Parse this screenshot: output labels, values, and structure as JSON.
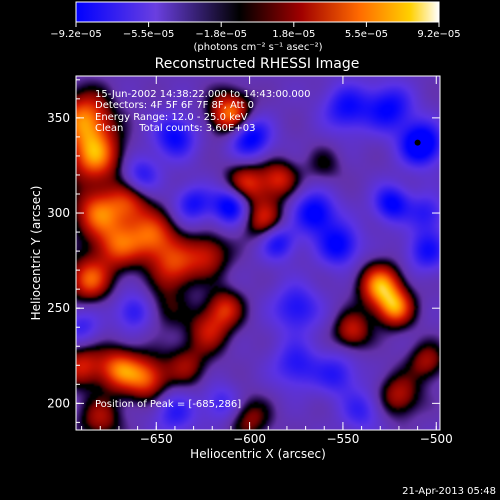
{
  "chart_data": {
    "type": "heatmap",
    "title": "Reconstructed RHESSI Image",
    "xlabel": "Heliocentric X (arcsec)",
    "ylabel": "Heliocentric Y (arcsec)",
    "xlim": [
      -693,
      -498
    ],
    "ylim": [
      186,
      372
    ],
    "x_ticks": [
      -650,
      -600,
      -550,
      -500
    ],
    "x_tick_labels": [
      "−650",
      "−600",
      "−550",
      "−500"
    ],
    "y_ticks": [
      200,
      250,
      300,
      350
    ],
    "y_tick_labels": [
      "200",
      "250",
      "300",
      "350"
    ],
    "colorbar": {
      "min": -9.2e-05,
      "max": 9.2e-05,
      "tick_labels": [
        "−9.2e−05",
        "−5.5e−05",
        "−1.8e−05",
        "1.8e−05",
        "5.5e−05",
        "9.2e−05"
      ],
      "unit_label": "(photons cm⁻² s⁻¹ asec⁻²)",
      "colors": [
        "#0000ff",
        "#6a3fe0",
        "#000000",
        "#a00000",
        "#ff6a00",
        "#ffd000",
        "#ffffff"
      ]
    },
    "info_lines": [
      "15-Jun-2002 14:38:22.000 to 14:43:00.000",
      "Detectors: 4F 5F 6F 7F 8F, Att 0",
      "Energy Range: 12.0 - 25.0 keV",
      "Clean     Total counts: 3.60E+03"
    ],
    "peak_label": "Position of Peak = [-685,286]",
    "marker": {
      "x": -510,
      "y": 337
    },
    "blobs": [
      {
        "x": -688,
        "y": 350,
        "v": 0.85,
        "s": 10
      },
      {
        "x": -683,
        "y": 330,
        "v": 0.9,
        "s": 10
      },
      {
        "x": -682,
        "y": 300,
        "v": 0.75,
        "s": 9
      },
      {
        "x": -686,
        "y": 265,
        "v": 0.8,
        "s": 8
      },
      {
        "x": -690,
        "y": 220,
        "v": 0.6,
        "s": 8
      },
      {
        "x": -671,
        "y": 283,
        "v": 0.7,
        "s": 9
      },
      {
        "x": -652,
        "y": 288,
        "v": 0.75,
        "s": 9
      },
      {
        "x": -665,
        "y": 305,
        "v": 0.6,
        "s": 8
      },
      {
        "x": -640,
        "y": 272,
        "v": 0.65,
        "s": 9
      },
      {
        "x": -622,
        "y": 278,
        "v": 0.55,
        "s": 8
      },
      {
        "x": -610,
        "y": 352,
        "v": 0.95,
        "s": 8
      },
      {
        "x": -602,
        "y": 315,
        "v": 0.7,
        "s": 8
      },
      {
        "x": -592,
        "y": 296,
        "v": 0.65,
        "s": 8
      },
      {
        "x": -584,
        "y": 318,
        "v": 0.6,
        "s": 7
      },
      {
        "x": -670,
        "y": 218,
        "v": 0.8,
        "s": 8
      },
      {
        "x": -655,
        "y": 213,
        "v": 0.75,
        "s": 8
      },
      {
        "x": -634,
        "y": 220,
        "v": 0.45,
        "s": 8
      },
      {
        "x": -622,
        "y": 238,
        "v": 0.55,
        "s": 8
      },
      {
        "x": -613,
        "y": 250,
        "v": 0.6,
        "s": 7
      },
      {
        "x": -530,
        "y": 262,
        "v": 0.95,
        "s": 8
      },
      {
        "x": -522,
        "y": 250,
        "v": 0.85,
        "s": 7
      },
      {
        "x": -545,
        "y": 238,
        "v": 0.6,
        "s": 7
      },
      {
        "x": -520,
        "y": 204,
        "v": 0.55,
        "s": 8
      },
      {
        "x": -505,
        "y": 222,
        "v": 0.5,
        "s": 7
      },
      {
        "x": -680,
        "y": 192,
        "v": 0.5,
        "s": 8
      },
      {
        "x": -600,
        "y": 192,
        "v": 0.45,
        "s": 8
      },
      {
        "x": -560,
        "y": 325,
        "v": 0.25,
        "s": 7
      },
      {
        "x": -645,
        "y": 250,
        "v": 0.3,
        "s": 8
      },
      {
        "x": -600,
        "y": 340,
        "v": -0.85,
        "s": 8
      },
      {
        "x": -610,
        "y": 304,
        "v": -0.9,
        "s": 7
      },
      {
        "x": -585,
        "y": 285,
        "v": -0.7,
        "s": 7
      },
      {
        "x": -565,
        "y": 300,
        "v": -0.8,
        "s": 8
      },
      {
        "x": -552,
        "y": 283,
        "v": -0.75,
        "s": 8
      },
      {
        "x": -524,
        "y": 305,
        "v": -0.75,
        "s": 7
      },
      {
        "x": -508,
        "y": 336,
        "v": -1.0,
        "s": 8
      },
      {
        "x": -525,
        "y": 355,
        "v": -0.7,
        "s": 9
      },
      {
        "x": -548,
        "y": 355,
        "v": -0.65,
        "s": 9
      },
      {
        "x": -640,
        "y": 340,
        "v": -0.7,
        "s": 8
      },
      {
        "x": -658,
        "y": 320,
        "v": -0.55,
        "s": 7
      },
      {
        "x": -630,
        "y": 305,
        "v": -0.6,
        "s": 7
      },
      {
        "x": -662,
        "y": 248,
        "v": -0.55,
        "s": 7
      },
      {
        "x": -575,
        "y": 250,
        "v": -0.6,
        "s": 9
      },
      {
        "x": -575,
        "y": 220,
        "v": -0.55,
        "s": 9
      },
      {
        "x": -553,
        "y": 215,
        "v": -0.5,
        "s": 8
      },
      {
        "x": -505,
        "y": 280,
        "v": -0.6,
        "s": 8
      },
      {
        "x": -505,
        "y": 300,
        "v": -0.5,
        "s": 7
      },
      {
        "x": -640,
        "y": 195,
        "v": -0.5,
        "s": 8
      },
      {
        "x": -615,
        "y": 200,
        "v": -0.45,
        "s": 7
      },
      {
        "x": -690,
        "y": 240,
        "v": -0.45,
        "s": 7
      },
      {
        "x": -540,
        "y": 196,
        "v": -0.45,
        "s": 8
      }
    ]
  },
  "footer": {
    "timestamp": "21-Apr-2013 05:48"
  }
}
